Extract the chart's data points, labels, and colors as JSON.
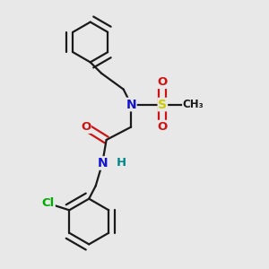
{
  "background_color": "#e8e8e8",
  "figsize": [
    3.0,
    3.0
  ],
  "dpi": 100,
  "colors": {
    "C": "#1a1a1a",
    "N": "#1414cc",
    "O": "#cc1414",
    "S": "#cccc00",
    "Cl": "#00aa00",
    "H": "#008888",
    "bond": "#1a1a1a"
  },
  "bond_lw": 1.6,
  "double_sep": 0.013
}
